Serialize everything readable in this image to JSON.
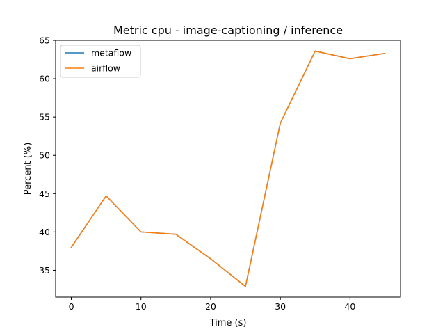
{
  "chart_data": {
    "type": "line",
    "title": "Metric cpu - image-captioning / inference",
    "xlabel": "Time (s)",
    "ylabel": "Percent (%)",
    "xlim": [
      -2.25,
      47.25
    ],
    "ylim": [
      31.5,
      65.0
    ],
    "xticks": [
      0,
      10,
      20,
      30,
      40
    ],
    "yticks": [
      35,
      40,
      45,
      50,
      55,
      60,
      65
    ],
    "grid": false,
    "legend": "top-left",
    "x": [
      0,
      5,
      10,
      15,
      20,
      25,
      30,
      35,
      40,
      45
    ],
    "series": [
      {
        "name": "metaflow",
        "color": "#1f77b4",
        "values": [
          38.0,
          44.7,
          40.0,
          39.7,
          36.5,
          32.9,
          54.2,
          63.6,
          62.6,
          63.3
        ]
      },
      {
        "name": "airflow",
        "color": "#ff7f0e",
        "values": [
          38.0,
          44.7,
          40.0,
          39.7,
          36.5,
          32.9,
          54.2,
          63.6,
          62.6,
          63.3
        ]
      }
    ]
  }
}
